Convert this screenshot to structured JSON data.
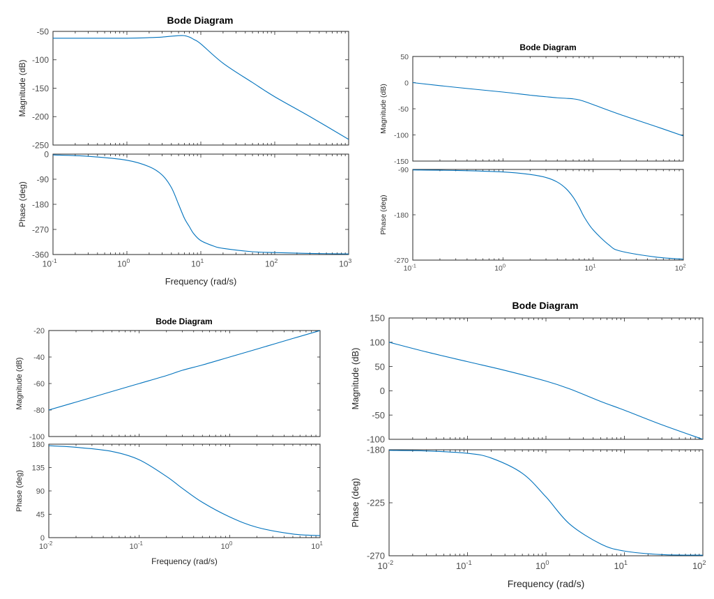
{
  "chart_data": [
    {
      "type": "line",
      "id": "bode1",
      "title": "Bode Diagram",
      "xlabel": "Frequency  (rad/s)",
      "xscale": "log",
      "xlim": [
        0.1,
        1000
      ],
      "xticks": [
        {
          "base": "10",
          "exp": "-1"
        },
        {
          "base": "10",
          "exp": "0"
        },
        {
          "base": "10",
          "exp": "1"
        },
        {
          "base": "10",
          "exp": "2"
        },
        {
          "base": "10",
          "exp": "3"
        }
      ],
      "magnitude": {
        "ylabel": "Magnitude (dB)",
        "ylim": [
          -250,
          -50
        ],
        "yticks": [
          "-50",
          "-100",
          "-150",
          "-200",
          "-250"
        ],
        "series": [
          {
            "name": "magnitude",
            "x": [
              0.1,
              0.3,
              1,
              2,
              3,
              4,
              5,
              6,
              7,
              8,
              10,
              20,
              50,
              100,
              300,
              1000
            ],
            "y": [
              -62,
              -62,
              -62,
              -61,
              -60,
              -58.5,
              -57.5,
              -57.5,
              -60,
              -64,
              -72,
              -106,
              -140,
              -165,
              -200,
              -240
            ]
          }
        ]
      },
      "phase": {
        "ylabel": "Phase (deg)",
        "ylim": [
          -360,
          0
        ],
        "yticks": [
          "0",
          "-90",
          "-180",
          "-270",
          "-360"
        ],
        "series": [
          {
            "name": "phase",
            "x": [
              0.1,
              0.3,
              1,
              2,
              3,
              4,
              5,
              6,
              7,
              8,
              10,
              15,
              20,
              50,
              100,
              300,
              1000
            ],
            "y": [
              -3,
              -8,
              -22,
              -45,
              -75,
              -120,
              -180,
              -230,
              -260,
              -285,
              -310,
              -330,
              -338,
              -350,
              -353,
              -356,
              -358
            ]
          }
        ]
      }
    },
    {
      "type": "line",
      "id": "bode2",
      "title": "Bode Diagram",
      "xlabel": "",
      "xscale": "log",
      "xlim": [
        0.1,
        100
      ],
      "xticks": [
        {
          "base": "10",
          "exp": "-1"
        },
        {
          "base": "10",
          "exp": "0"
        },
        {
          "base": "10",
          "exp": "1"
        },
        {
          "base": "10",
          "exp": "2"
        }
      ],
      "magnitude": {
        "ylabel": "Magnitude (dB)",
        "ylim": [
          -150,
          50
        ],
        "yticks": [
          "50",
          "0",
          "-50",
          "-100",
          "-150"
        ],
        "series": [
          {
            "name": "magnitude",
            "x": [
              0.1,
              0.3,
              1,
              2,
              3,
              4,
              5,
              6,
              7,
              8,
              10,
              20,
              50,
              100
            ],
            "y": [
              0,
              -9,
              -18,
              -24,
              -27,
              -29,
              -30,
              -31,
              -33,
              -36,
              -42,
              -61,
              -84,
              -102
            ]
          }
        ]
      },
      "phase": {
        "ylabel": "Phase (deg)",
        "ylim": [
          -270,
          -90
        ],
        "yticks": [
          "-90",
          "-180",
          "-270"
        ],
        "series": [
          {
            "name": "phase",
            "x": [
              0.1,
              0.3,
              1,
              2,
              3,
              4,
              5,
              6,
              7,
              8,
              10,
              15,
              20,
              50,
              100
            ],
            "y": [
              -91,
              -92,
              -95,
              -100,
              -106,
              -115,
              -128,
              -145,
              -165,
              -185,
              -210,
              -240,
              -252,
              -264,
              -268
            ]
          }
        ]
      }
    },
    {
      "type": "line",
      "id": "bode3",
      "title": "Bode Diagram",
      "xlabel": "Frequency  (rad/s)",
      "xscale": "log",
      "xlim": [
        0.01,
        10
      ],
      "xticks": [
        {
          "base": "10",
          "exp": "-2"
        },
        {
          "base": "10",
          "exp": "-1"
        },
        {
          "base": "10",
          "exp": "0"
        },
        {
          "base": "10",
          "exp": "1"
        }
      ],
      "magnitude": {
        "ylabel": "Magnitude (dB)",
        "ylim": [
          -100,
          -20
        ],
        "yticks": [
          "-20",
          "-40",
          "-60",
          "-80",
          "-100"
        ],
        "series": [
          {
            "name": "magnitude",
            "x": [
              0.01,
              0.02,
              0.05,
              0.1,
              0.2,
              0.3,
              0.5,
              1,
              2,
              5,
              10
            ],
            "y": [
              -80,
              -74,
              -66,
              -60,
              -54,
              -50,
              -46,
              -40,
              -34,
              -26,
              -20
            ]
          }
        ]
      },
      "phase": {
        "ylabel": "Phase (deg)",
        "ylim": [
          0,
          180
        ],
        "yticks": [
          "180",
          "135",
          "90",
          "45",
          "0"
        ],
        "series": [
          {
            "name": "phase",
            "x": [
              0.01,
              0.02,
              0.05,
              0.1,
              0.2,
              0.3,
              0.5,
              1,
              2,
              5,
              10
            ],
            "y": [
              177,
              174,
              166,
              150,
              118,
              95,
              68,
              40,
              20,
              7,
              4
            ]
          }
        ]
      }
    },
    {
      "type": "line",
      "id": "bode4",
      "title": "Bode Diagram",
      "xlabel": "Frequency  (rad/s)",
      "xscale": "log",
      "xlim": [
        0.01,
        100
      ],
      "xticks": [
        {
          "base": "10",
          "exp": "-2"
        },
        {
          "base": "10",
          "exp": "-1"
        },
        {
          "base": "10",
          "exp": "0"
        },
        {
          "base": "10",
          "exp": "1"
        },
        {
          "base": "10",
          "exp": "2"
        }
      ],
      "magnitude": {
        "ylabel": "Magnitude (dB)",
        "ylim": [
          -100,
          150
        ],
        "yticks": [
          "150",
          "100",
          "50",
          "0",
          "-50",
          "-100"
        ],
        "series": [
          {
            "name": "magnitude",
            "x": [
              0.01,
              0.03,
              0.1,
              0.3,
              1,
              2,
              5,
              10,
              30,
              100
            ],
            "y": [
              100,
              80,
              60,
              42,
              20,
              4,
              -22,
              -40,
              -70,
              -100
            ]
          }
        ]
      },
      "phase": {
        "ylabel": "Phase (deg)",
        "ylim": [
          -270,
          -180
        ],
        "yticks": [
          "-180",
          "-225",
          "-270"
        ],
        "series": [
          {
            "name": "phase",
            "x": [
              0.01,
              0.03,
              0.1,
              0.2,
              0.5,
              1,
              2,
              5,
              10,
              30,
              100
            ],
            "y": [
              -180.5,
              -181,
              -183,
              -187,
              -200,
              -220,
              -243,
              -260,
              -266,
              -269,
              -269.5
            ]
          }
        ]
      }
    }
  ]
}
